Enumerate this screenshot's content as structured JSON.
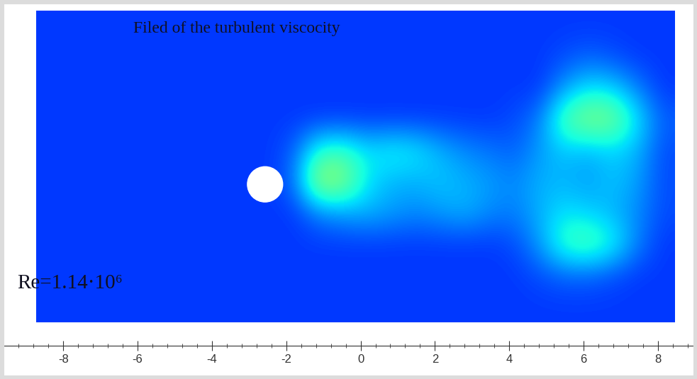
{
  "chart_data": {
    "type": "heatmap",
    "title": "Filed of the turbulent viscocity",
    "annotation": "Re=1.14·10⁶",
    "xlim": [
      -9.7,
      9.05
    ],
    "xticks": [
      -8,
      -6,
      -4,
      -2,
      0,
      2,
      4,
      6,
      8
    ],
    "tick_labels": "x",
    "field": {
      "x_extent": [
        -8.72,
        8.46
      ],
      "y_extent": [
        -3.71,
        4.67
      ],
      "range": [
        0,
        1
      ],
      "cells": [
        [
          0.18,
          0.18,
          0.18,
          0.18,
          0.18,
          0.18,
          0.18,
          0.18,
          0.18,
          0.18,
          0.18,
          0.18,
          0.18,
          0.18,
          0.18,
          0.18,
          0.18,
          0.18,
          0.18,
          0.18,
          0.18,
          0.18,
          0.18,
          0.18,
          0.18,
          0.18
        ],
        [
          0.18,
          0.18,
          0.18,
          0.18,
          0.18,
          0.18,
          0.18,
          0.18,
          0.18,
          0.18,
          0.18,
          0.18,
          0.18,
          0.18,
          0.18,
          0.18,
          0.18,
          0.18,
          0.18,
          0.18,
          0.18,
          0.2,
          0.22,
          0.2,
          0.18,
          0.18
        ],
        [
          0.18,
          0.18,
          0.18,
          0.18,
          0.18,
          0.18,
          0.18,
          0.18,
          0.18,
          0.18,
          0.18,
          0.18,
          0.18,
          0.18,
          0.18,
          0.18,
          0.18,
          0.18,
          0.18,
          0.18,
          0.18,
          0.28,
          0.35,
          0.33,
          0.25,
          0.18
        ],
        [
          0.18,
          0.18,
          0.18,
          0.18,
          0.18,
          0.18,
          0.18,
          0.18,
          0.18,
          0.18,
          0.18,
          0.18,
          0.18,
          0.18,
          0.18,
          0.18,
          0.18,
          0.18,
          0.18,
          0.2,
          0.25,
          0.45,
          0.52,
          0.5,
          0.35,
          0.22
        ],
        [
          0.18,
          0.18,
          0.18,
          0.18,
          0.18,
          0.18,
          0.18,
          0.18,
          0.18,
          0.18,
          0.22,
          0.4,
          0.42,
          0.35,
          0.38,
          0.36,
          0.3,
          0.26,
          0.24,
          0.22,
          0.28,
          0.32,
          0.3,
          0.33,
          0.3,
          0.2
        ],
        [
          0.18,
          0.18,
          0.18,
          0.18,
          0.18,
          0.18,
          0.18,
          0.18,
          0.18,
          0.18,
          0.24,
          0.55,
          0.52,
          0.35,
          0.3,
          0.3,
          0.32,
          0.3,
          0.28,
          0.26,
          0.3,
          0.3,
          0.28,
          0.32,
          0.28,
          0.2
        ],
        [
          0.18,
          0.18,
          0.18,
          0.18,
          0.18,
          0.18,
          0.18,
          0.18,
          0.18,
          0.18,
          0.18,
          0.25,
          0.28,
          0.3,
          0.28,
          0.26,
          0.28,
          0.3,
          0.26,
          0.25,
          0.3,
          0.35,
          0.33,
          0.3,
          0.26,
          0.2
        ],
        [
          0.18,
          0.18,
          0.18,
          0.18,
          0.18,
          0.18,
          0.18,
          0.18,
          0.18,
          0.18,
          0.18,
          0.18,
          0.18,
          0.18,
          0.18,
          0.18,
          0.18,
          0.18,
          0.18,
          0.2,
          0.28,
          0.42,
          0.45,
          0.38,
          0.25,
          0.18
        ],
        [
          0.18,
          0.18,
          0.18,
          0.18,
          0.18,
          0.18,
          0.18,
          0.18,
          0.18,
          0.18,
          0.18,
          0.18,
          0.18,
          0.18,
          0.18,
          0.18,
          0.18,
          0.18,
          0.18,
          0.18,
          0.2,
          0.22,
          0.22,
          0.2,
          0.18,
          0.18
        ],
        [
          0.18,
          0.18,
          0.18,
          0.18,
          0.18,
          0.18,
          0.18,
          0.18,
          0.18,
          0.18,
          0.18,
          0.18,
          0.18,
          0.18,
          0.18,
          0.18,
          0.18,
          0.18,
          0.18,
          0.18,
          0.18,
          0.18,
          0.18,
          0.18,
          0.18,
          0.18
        ]
      ]
    },
    "cylinder": {
      "x": -2.57,
      "y": 0,
      "diameter": 0.95
    }
  }
}
